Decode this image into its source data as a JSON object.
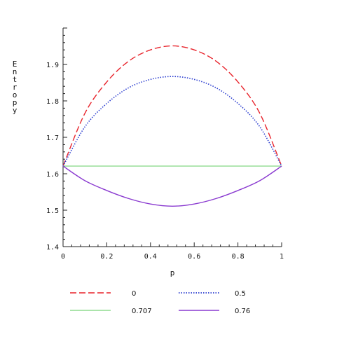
{
  "chart_data": {
    "type": "line",
    "xlabel": "p",
    "ylabel": "Entropy",
    "xlim": [
      0,
      1
    ],
    "ylim": [
      1.4,
      2.0
    ],
    "x_ticks": [
      "0",
      "0.2",
      "0.4",
      "0.6",
      "0.8",
      "1"
    ],
    "y_ticks": [
      "1.4",
      "1.5",
      "1.6",
      "1.7",
      "1.8",
      "1.9"
    ],
    "grid": false,
    "legend_position": "bottom",
    "x": [
      0,
      0.1,
      0.2,
      0.3,
      0.4,
      0.5,
      0.6,
      0.7,
      0.8,
      0.9,
      1.0
    ],
    "series": [
      {
        "name": "0",
        "color": "#e8242c",
        "dash": "dashed",
        "values": [
          1.621,
          1.766,
          1.852,
          1.909,
          1.94,
          1.951,
          1.94,
          1.909,
          1.852,
          1.766,
          1.621
        ]
      },
      {
        "name": "0.5",
        "color": "#2d3fd0",
        "dash": "dotted",
        "values": [
          1.621,
          1.729,
          1.793,
          1.836,
          1.859,
          1.867,
          1.859,
          1.836,
          1.793,
          1.729,
          1.621
        ]
      },
      {
        "name": "0.707",
        "color": "#8fdc8f",
        "dash": "solid",
        "values": [
          1.621,
          1.621,
          1.621,
          1.621,
          1.621,
          1.621,
          1.621,
          1.621,
          1.621,
          1.621,
          1.621
        ]
      },
      {
        "name": "0.76",
        "color": "#8a3ad0",
        "dash": "solid",
        "values": [
          1.621,
          1.581,
          1.554,
          1.532,
          1.517,
          1.511,
          1.517,
          1.532,
          1.554,
          1.581,
          1.621
        ]
      }
    ],
    "legend_labels": [
      "0",
      "0.5",
      "0.707",
      "0.76"
    ]
  }
}
